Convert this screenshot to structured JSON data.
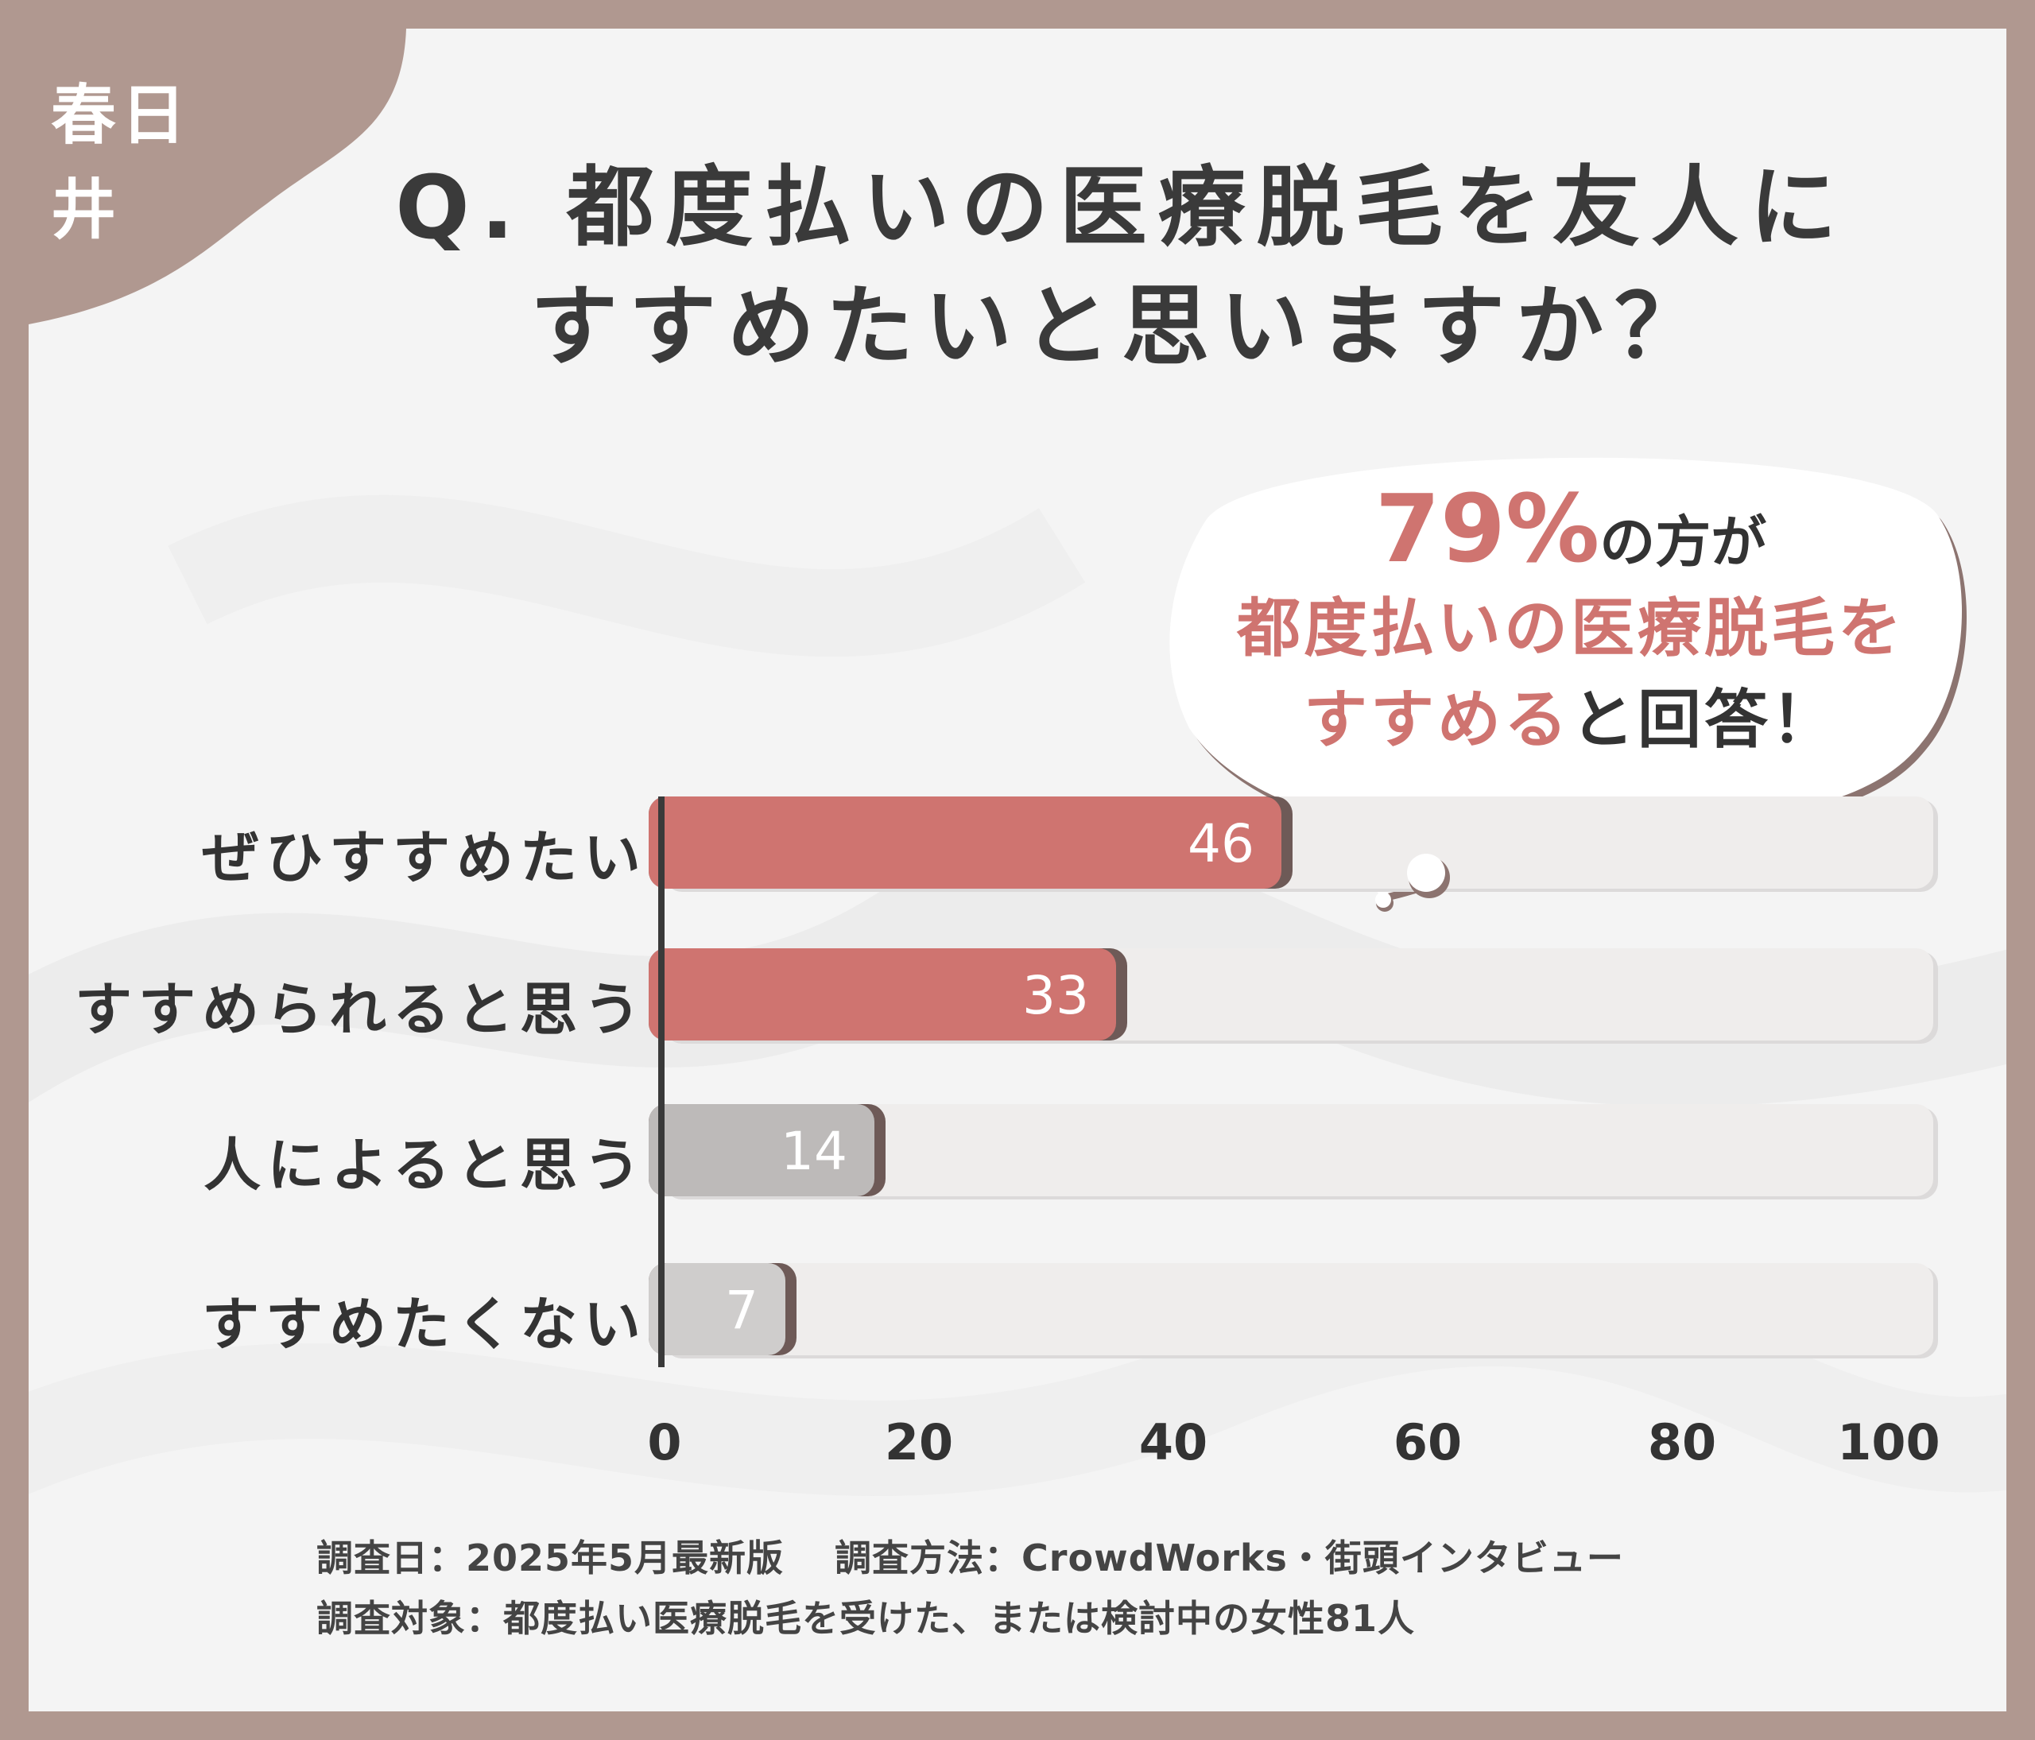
{
  "corner_label": "春日井",
  "title": {
    "line1": "Q. 都度払いの医療脱毛を友人に",
    "line2": "すすめたいと思いますか？"
  },
  "callout": {
    "percent": "79%",
    "line1_suffix": "の方が",
    "line2": "都度払いの医療脱毛を",
    "line3_pink": "すすめる",
    "line3_rest": "と回答！"
  },
  "chart_data": {
    "type": "bar",
    "orientation": "horizontal",
    "categories": [
      "ぜひすすめたい",
      "すすめられると思う",
      "人によると思う",
      "すすめたくない"
    ],
    "values": [
      46,
      33,
      14,
      7
    ],
    "xlim": [
      0,
      100
    ],
    "xticks": [
      "0",
      "20",
      "40",
      "60",
      "80",
      "100"
    ],
    "colors": [
      "#cf7470",
      "#cf7470",
      "#bdbab9",
      "#cfcdcc"
    ],
    "grid": false
  },
  "footer": {
    "line1": "調査日：2025年5月最新版　 調査方法：CrowdWorks・街頭インタビュー",
    "line2": "調査対象：都度払い医療脱毛を受けた、または検討中の女性81人"
  }
}
